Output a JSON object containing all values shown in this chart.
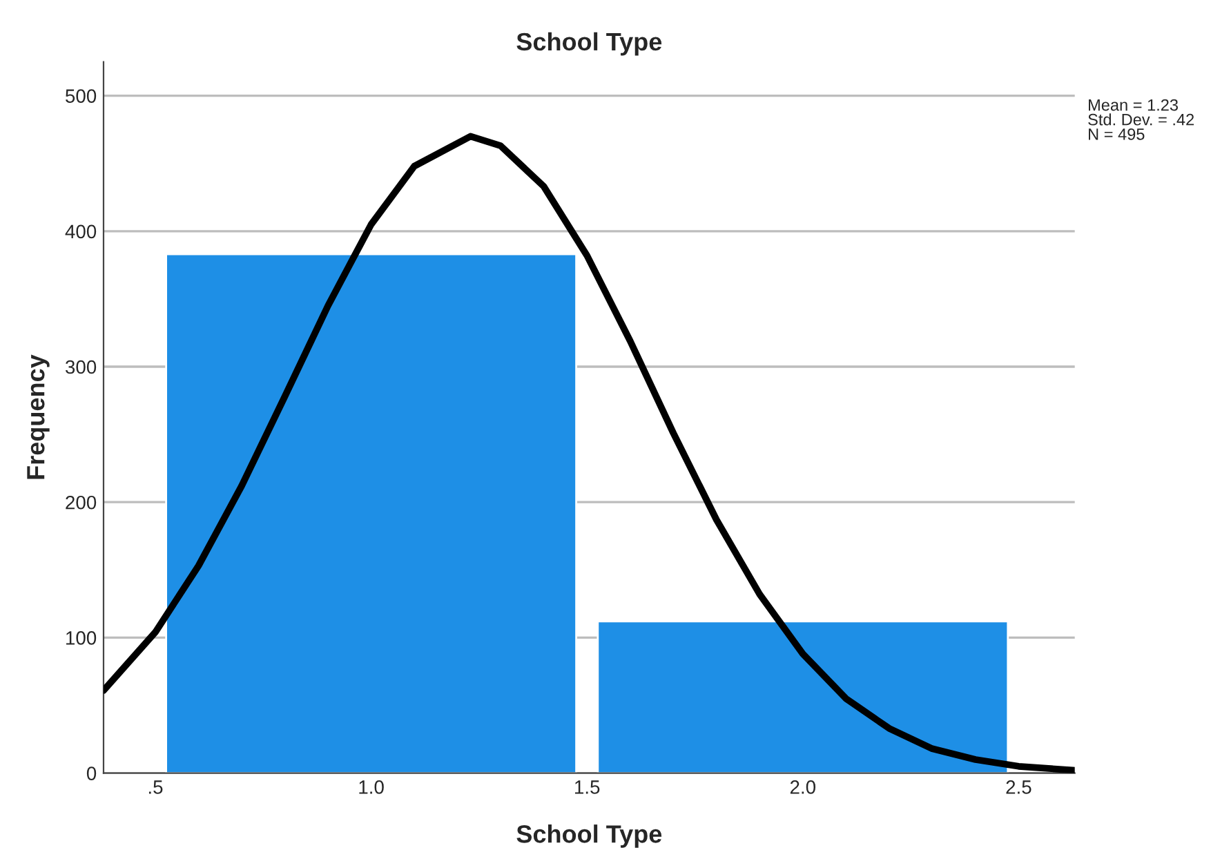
{
  "chart_data": {
    "type": "histogram",
    "title": "School Type",
    "xlabel": "School Type",
    "ylabel": "Frequency",
    "bins": [
      0.5,
      1.5,
      2.5
    ],
    "values": [
      383,
      112
    ],
    "color": "#1e8fe6",
    "xlim": [
      0.38,
      2.63
    ],
    "xticks": [
      {
        "value": 0.5,
        "label": ".5"
      },
      {
        "value": 1.0,
        "label": "1.0"
      },
      {
        "value": 1.5,
        "label": "1.5"
      },
      {
        "value": 2.0,
        "label": "2.0"
      },
      {
        "value": 2.5,
        "label": "2.5"
      }
    ],
    "ylim": [
      0,
      525
    ],
    "yticks": [
      0,
      100,
      200,
      300,
      400,
      500
    ],
    "grid": "y",
    "series": [
      {
        "type": "line",
        "color": "#000000",
        "x": [
          0.38,
          0.5,
          0.6,
          0.7,
          0.8,
          0.9,
          1.0,
          1.1,
          1.23,
          1.3,
          1.4,
          1.5,
          1.6,
          1.7,
          1.8,
          1.9,
          2.0,
          2.1,
          2.2,
          2.3,
          2.4,
          2.5,
          2.63
        ],
        "values": [
          61,
          104,
          153,
          212,
          278,
          345,
          405,
          448,
          470,
          463,
          433,
          382,
          319,
          251,
          187,
          132,
          88,
          55,
          33,
          18,
          10,
          5,
          2
        ]
      }
    ],
    "annotations": [
      "Mean = 1.23",
      "Std. Dev. = .42",
      "N = 495"
    ]
  }
}
